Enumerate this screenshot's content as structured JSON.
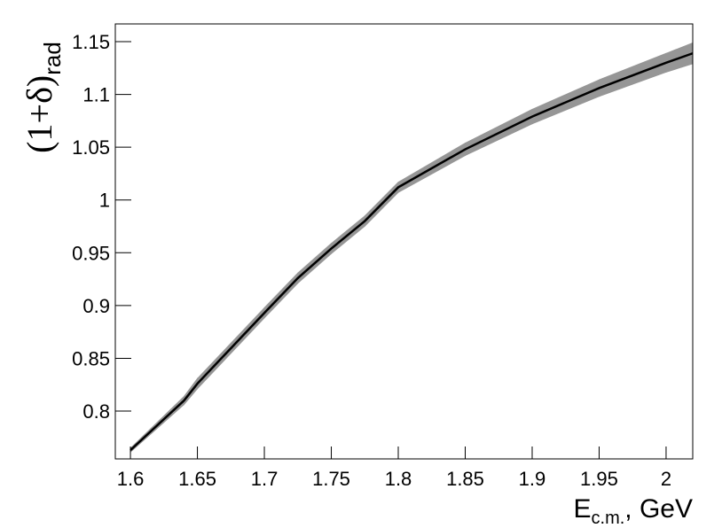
{
  "chart_data": {
    "type": "line",
    "ylabel": "(1+δ)",
    "ylabel_sub": "rad",
    "xlabel": "E",
    "xlabel_sub": "c.m.",
    "xlabel_unit": ", GeV",
    "x": [
      1.6,
      1.64,
      1.65,
      1.7,
      1.725,
      1.75,
      1.775,
      1.8,
      1.85,
      1.9,
      1.95,
      2.0,
      2.02
    ],
    "series": [
      {
        "name": "central",
        "color": "#000000",
        "values": [
          0.763,
          0.81,
          0.826,
          0.893,
          0.926,
          0.954,
          0.98,
          1.012,
          1.048,
          1.079,
          1.106,
          1.13,
          1.139
        ]
      },
      {
        "name": "upper",
        "color": "#969696",
        "values": [
          0.765,
          0.814,
          0.831,
          0.898,
          0.931,
          0.959,
          0.985,
          1.017,
          1.054,
          1.086,
          1.114,
          1.139,
          1.149
        ]
      },
      {
        "name": "lower",
        "color": "#969696",
        "values": [
          0.761,
          0.806,
          0.821,
          0.888,
          0.921,
          0.949,
          0.975,
          1.007,
          1.042,
          1.072,
          1.098,
          1.121,
          1.129
        ]
      }
    ],
    "xlim": [
      1.5887,
      2.0199
    ],
    "ylim": [
      0.7547,
      1.1668
    ],
    "xticks": [
      1.6,
      1.65,
      1.7,
      1.75,
      1.8,
      1.85,
      1.9,
      1.95,
      2
    ],
    "yticks": [
      0.8,
      0.85,
      0.9,
      0.95,
      1,
      1.05,
      1.1,
      1.15
    ]
  }
}
